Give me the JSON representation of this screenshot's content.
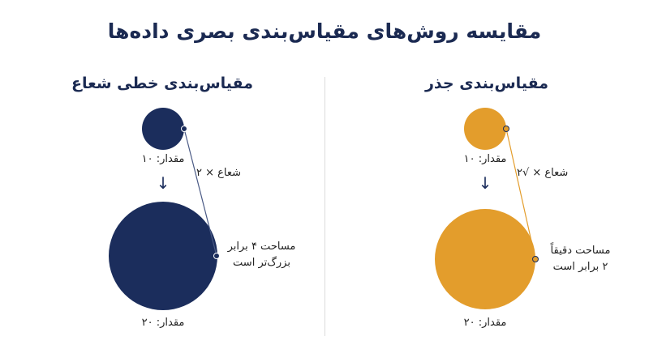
{
  "title": "مقایسه روش‌های مقیاس‌بندی بصری داده‌ها",
  "colors": {
    "navy": "#1b2d5c",
    "orange": "#e39d2c",
    "line": "#6c7ea8"
  },
  "left_panel": {
    "heading": "مقیاس‌بندی خطی شعاع",
    "small_value_label": "مقدار: ۱۰",
    "large_value_label": "مقدار: ۲۰",
    "radius_label": "شعاع × ۲",
    "area_note_line1": "مساحت ۴ برابر",
    "area_note_line2": "بزرگ‌تر است"
  },
  "right_panel": {
    "heading": "مقیاس‌بندی جذر",
    "small_value_label": "مقدار: ۱۰",
    "large_value_label": "مقدار: ۲۰",
    "radius_label": "شعاع × √۲",
    "area_note_line1": "مساحت دقیقاً",
    "area_note_line2": "۲ برابر است"
  },
  "arrow_glyph": "↓"
}
